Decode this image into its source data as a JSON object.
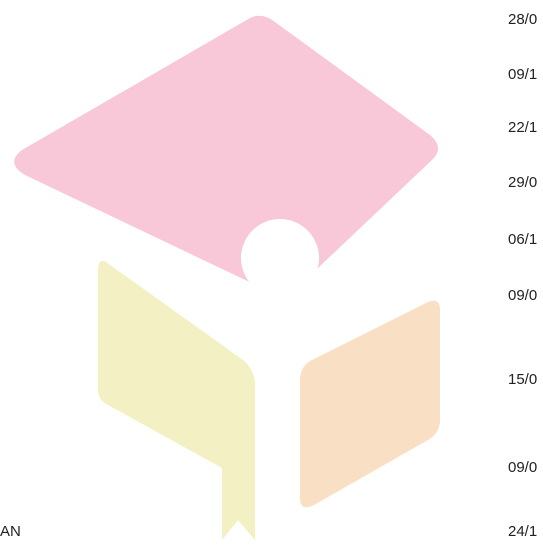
{
  "left_label": "AN",
  "dates": [
    "28/0",
    "09/1",
    "22/1",
    "29/0",
    "06/1",
    "09/0",
    "15/0",
    "09/0",
    "24/1"
  ]
}
